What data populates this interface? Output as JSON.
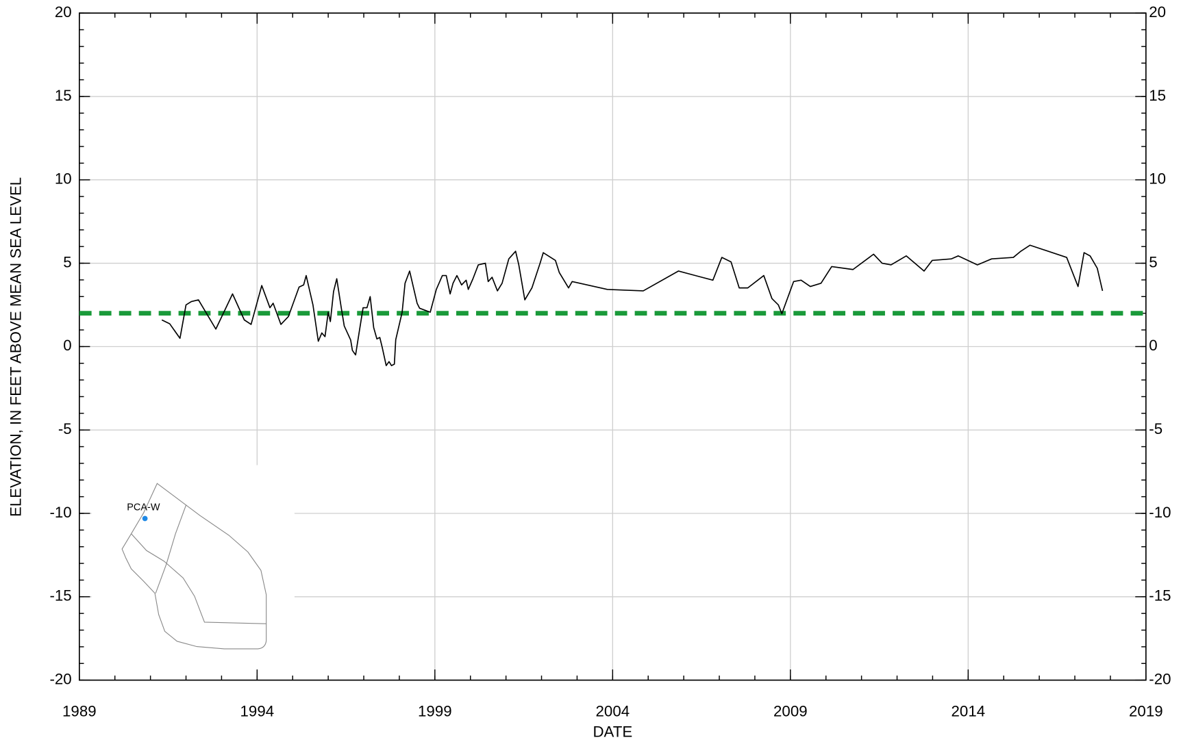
{
  "chart_data": {
    "type": "line",
    "x_label": "DATE",
    "y_label": "ELEVATION, IN FEET ABOVE MEAN SEA LEVEL",
    "inset_label": "PCA-W",
    "xlim": [
      1989,
      2019
    ],
    "xticks": [
      1989,
      1994,
      1999,
      2004,
      2009,
      2014,
      2019
    ],
    "ylim": [
      -20,
      20
    ],
    "yticks": [
      -20,
      -15,
      -10,
      -5,
      0,
      5,
      10,
      15,
      20
    ],
    "y2lim": [
      -20,
      20
    ],
    "y2ticks": [
      -20,
      -15,
      -10,
      -5,
      0,
      5,
      10,
      15,
      20
    ],
    "grid": true,
    "reference_line": {
      "value": 2,
      "color": "#1a9a3a"
    },
    "series": [
      {
        "color": "#000000",
        "x": [
          1991.32,
          1991.54,
          1991.83,
          1992.0,
          1992.15,
          1992.35,
          1992.84,
          1993.31,
          1993.64,
          1993.83,
          1994.13,
          1994.36,
          1994.45,
          1994.67,
          1994.88,
          1995.18,
          1995.31,
          1995.38,
          1995.57,
          1995.72,
          1995.82,
          1995.91,
          1996.0,
          1996.06,
          1996.15,
          1996.24,
          1996.37,
          1996.45,
          1996.63,
          1996.68,
          1996.77,
          1996.83,
          1996.98,
          1997.09,
          1997.18,
          1997.28,
          1997.37,
          1997.45,
          1997.52,
          1997.63,
          1997.71,
          1997.78,
          1997.86,
          1997.9,
          1998.08,
          1998.16,
          1998.29,
          1998.5,
          1998.57,
          1998.7,
          1998.87,
          1999.04,
          1999.21,
          1999.32,
          1999.43,
          1999.51,
          1999.62,
          1999.75,
          1999.88,
          1999.94,
          2000.07,
          2000.22,
          2000.42,
          2000.5,
          2000.61,
          2000.76,
          2000.89,
          2001.08,
          2001.27,
          2001.36,
          2001.53,
          2001.73,
          2001.96,
          2002.05,
          2002.39,
          2002.5,
          2002.76,
          2002.86,
          2003.85,
          2004.86,
          2005.85,
          2006.82,
          2007.07,
          2007.33,
          2007.56,
          2007.8,
          2008.25,
          2008.48,
          2008.66,
          2008.76,
          2009.09,
          2009.3,
          2009.56,
          2009.86,
          2010.16,
          2010.76,
          2011.34,
          2011.58,
          2011.83,
          2012.26,
          2012.76,
          2012.99,
          2013.53,
          2013.72,
          2014.26,
          2014.66,
          2015.27,
          2015.48,
          2015.74,
          2016.77,
          2017.09,
          2017.26,
          2017.43,
          2017.63,
          2017.78
        ],
        "values": [
          1.6,
          1.37,
          0.5,
          2.5,
          2.7,
          2.8,
          1.05,
          3.16,
          1.6,
          1.33,
          3.66,
          2.33,
          2.6,
          1.33,
          1.8,
          3.57,
          3.7,
          4.26,
          2.5,
          0.32,
          0.82,
          0.6,
          2.06,
          1.5,
          3.3,
          4.07,
          2.3,
          1.24,
          0.4,
          -0.23,
          -0.5,
          0.32,
          2.33,
          2.33,
          3.0,
          1.14,
          0.46,
          0.55,
          -0.05,
          -1.14,
          -0.9,
          -1.14,
          -1.05,
          0.41,
          2.06,
          3.8,
          4.53,
          2.6,
          2.3,
          2.2,
          2.06,
          3.43,
          4.26,
          4.26,
          3.16,
          3.8,
          4.26,
          3.7,
          3.98,
          3.43,
          4.07,
          4.9,
          5.0,
          3.9,
          4.16,
          3.34,
          3.8,
          5.26,
          5.72,
          4.9,
          2.8,
          3.52,
          5.0,
          5.63,
          5.17,
          4.44,
          3.52,
          3.9,
          3.43,
          3.34,
          4.53,
          3.98,
          5.35,
          5.08,
          3.52,
          3.52,
          4.26,
          2.88,
          2.5,
          1.97,
          3.9,
          3.98,
          3.6,
          3.8,
          4.8,
          4.62,
          5.54,
          5.0,
          4.9,
          5.44,
          4.53,
          5.17,
          5.26,
          5.44,
          4.9,
          5.26,
          5.35,
          5.72,
          6.08,
          5.35,
          3.6,
          5.63,
          5.44,
          4.7,
          3.34
        ]
      }
    ]
  }
}
